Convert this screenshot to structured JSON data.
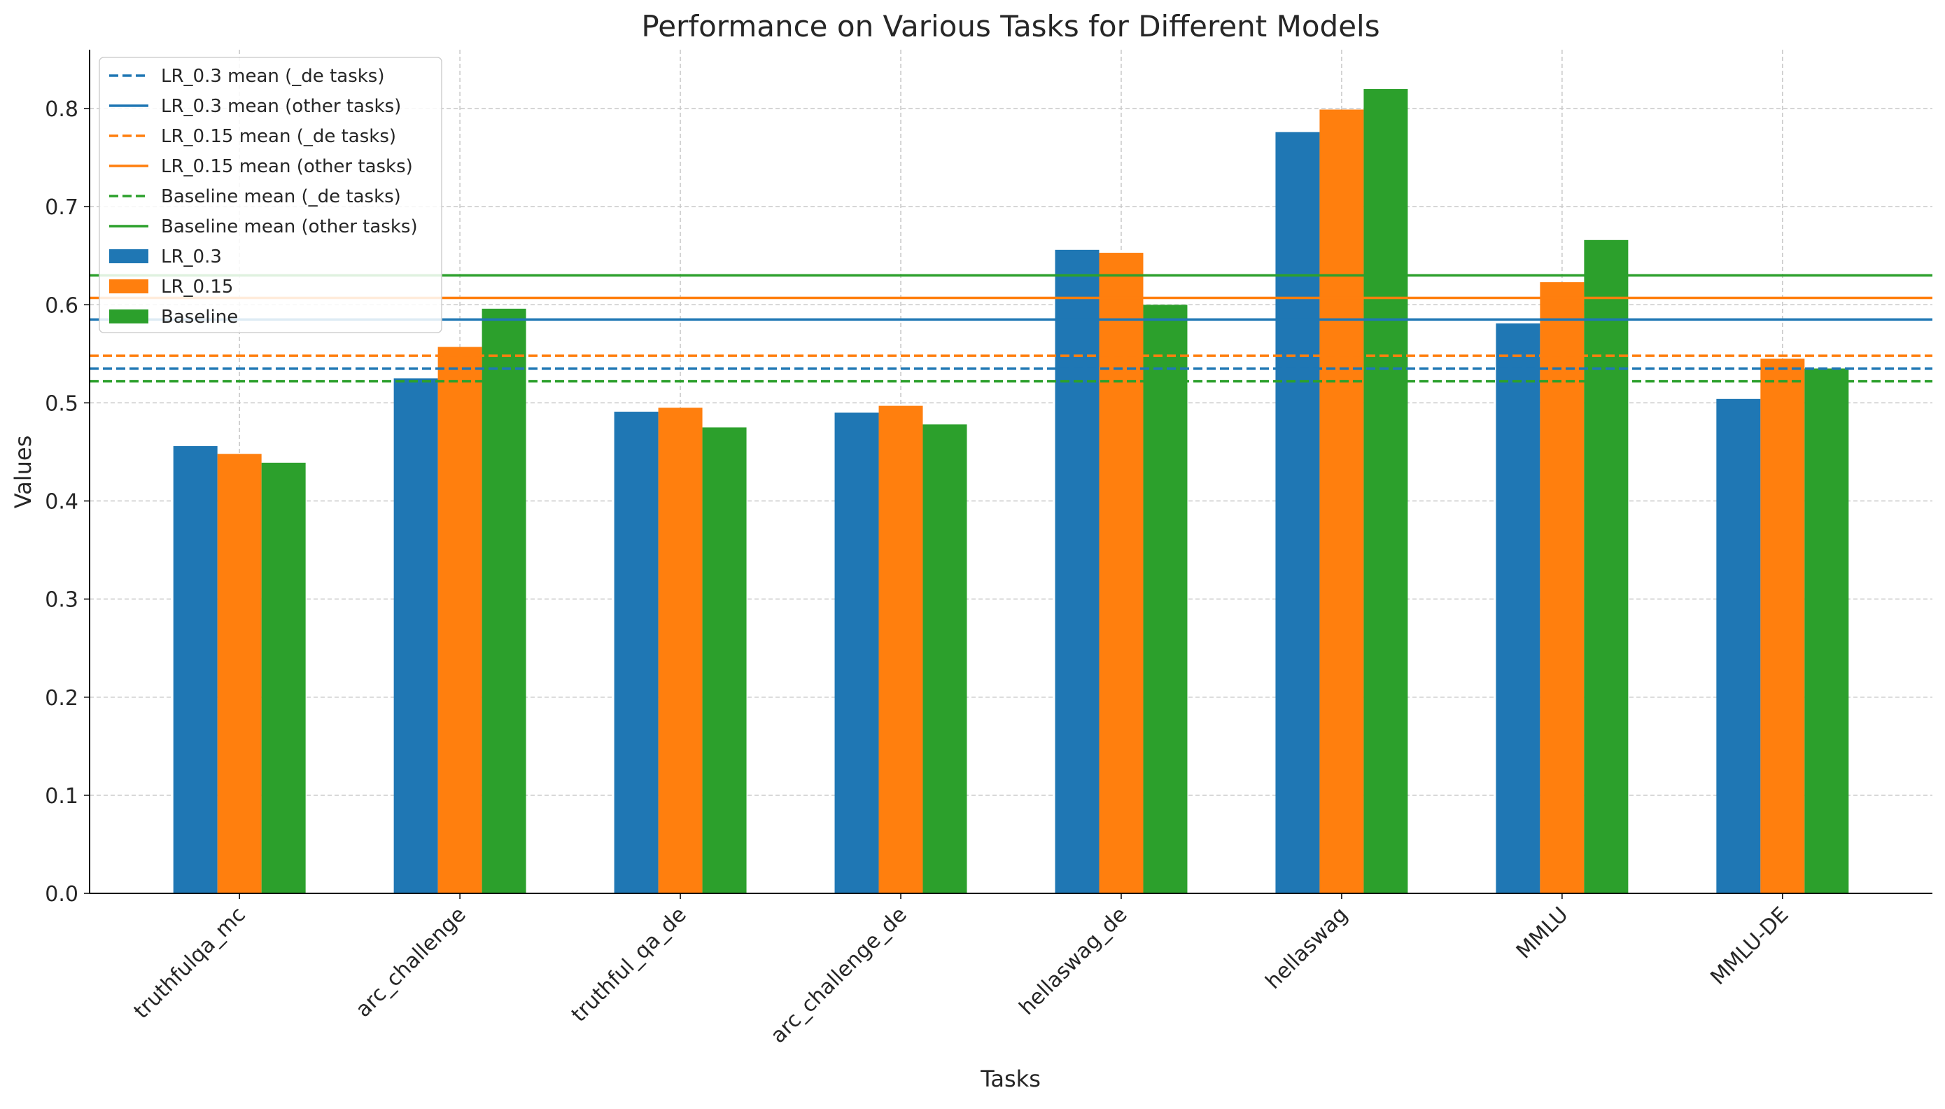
{
  "chart_data": {
    "type": "bar",
    "title": "Performance on Various Tasks for Different Models",
    "xlabel": "Tasks",
    "ylabel": "Values",
    "ylim": [
      0,
      0.86
    ],
    "yticks": [
      "0.0",
      "0.1",
      "0.2",
      "0.3",
      "0.4",
      "0.5",
      "0.6",
      "0.7",
      "0.8"
    ],
    "grid": true,
    "legend_position": "top-left",
    "categories": [
      "truthfulqa_mc",
      "arc_challenge",
      "truthful_qa_de",
      "arc_challenge_de",
      "hellaswag_de",
      "hellaswag",
      "MMLU",
      "MMLU-DE"
    ],
    "series": [
      {
        "name": "LR_0.3",
        "color": "#1f77b4",
        "values": [
          0.456,
          0.525,
          0.491,
          0.49,
          0.656,
          0.776,
          0.581,
          0.504
        ]
      },
      {
        "name": "LR_0.15",
        "color": "#ff7f0e",
        "values": [
          0.448,
          0.557,
          0.495,
          0.497,
          0.653,
          0.799,
          0.623,
          0.545
        ]
      },
      {
        "name": "Baseline",
        "color": "#2ca02c",
        "values": [
          0.439,
          0.596,
          0.475,
          0.478,
          0.6,
          0.82,
          0.666,
          0.535
        ]
      }
    ],
    "mean_lines": [
      {
        "name": "LR_0.3 mean (_de tasks)",
        "color": "#1f77b4",
        "style": "dashed",
        "value": 0.535
      },
      {
        "name": "LR_0.3 mean (other tasks)",
        "color": "#1f77b4",
        "style": "solid",
        "value": 0.585
      },
      {
        "name": "LR_0.15 mean (_de tasks)",
        "color": "#ff7f0e",
        "style": "dashed",
        "value": 0.548
      },
      {
        "name": "LR_0.15 mean (other tasks)",
        "color": "#ff7f0e",
        "style": "solid",
        "value": 0.607
      },
      {
        "name": "Baseline mean (_de tasks)",
        "color": "#2ca02c",
        "style": "dashed",
        "value": 0.522
      },
      {
        "name": "Baseline mean (other tasks)",
        "color": "#2ca02c",
        "style": "solid",
        "value": 0.63
      }
    ]
  }
}
